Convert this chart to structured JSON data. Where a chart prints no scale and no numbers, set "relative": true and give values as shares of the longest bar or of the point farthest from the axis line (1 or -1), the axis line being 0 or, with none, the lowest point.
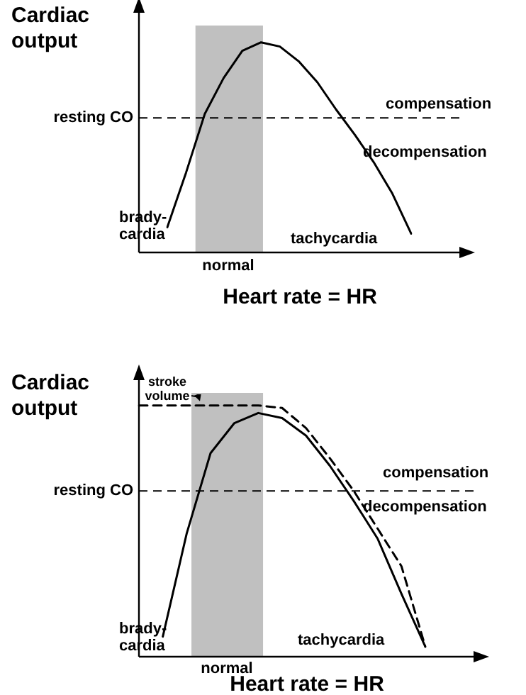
{
  "chart_data": [
    {
      "type": "line",
      "relative": true,
      "xlabel": "Heart rate = HR",
      "ylabel": "Cardiac output",
      "categories": [
        null,
        null,
        null,
        null,
        null,
        null,
        null,
        null,
        null,
        null,
        null,
        null,
        null,
        null
      ],
      "series": [
        {
          "color": "#000000",
          "line_style": "solid",
          "values": [
            0.12,
            0.38,
            0.66,
            0.83,
            0.96,
            1.0,
            0.98,
            0.91,
            0.81,
            0.68,
            0.56,
            0.43,
            0.28,
            0.09
          ]
        }
      ],
      "ref_lines": [
        {
          "axis": "y",
          "value": 0.64,
          "label": "resting CO",
          "line_style": "dashed"
        }
      ],
      "annotations": [
        "compensation",
        "decompensation",
        "brady-\ncardia",
        "tachycardia",
        "normal"
      ]
    },
    {
      "type": "line",
      "relative": true,
      "xlabel": "Heart rate = HR",
      "ylabel": "Cardiac output",
      "categories": [
        null,
        null,
        null,
        null,
        null,
        null,
        null,
        null,
        null,
        null,
        null,
        null,
        null
      ],
      "series": [
        {
          "color": "#000000",
          "line_style": "solid",
          "values": [
            null,
            0.08,
            0.49,
            0.81,
            0.93,
            0.97,
            0.95,
            0.88,
            0.76,
            0.62,
            0.47,
            0.25,
            0.04
          ]
        },
        {
          "color": "#000000",
          "line_style": "dashed",
          "values": [
            1.0,
            1.0,
            1.0,
            1.0,
            1.0,
            1.0,
            0.99,
            0.91,
            0.79,
            0.66,
            0.51,
            0.36,
            0.04
          ]
        }
      ],
      "ref_lines": [
        {
          "axis": "y",
          "value": 0.66,
          "label": "resting CO",
          "line_style": "dashed"
        }
      ],
      "annotations": [
        "stroke\nvolume",
        "compensation",
        "decompensation",
        "brady-\ncardia",
        "tachycardia",
        "normal"
      ]
    }
  ]
}
